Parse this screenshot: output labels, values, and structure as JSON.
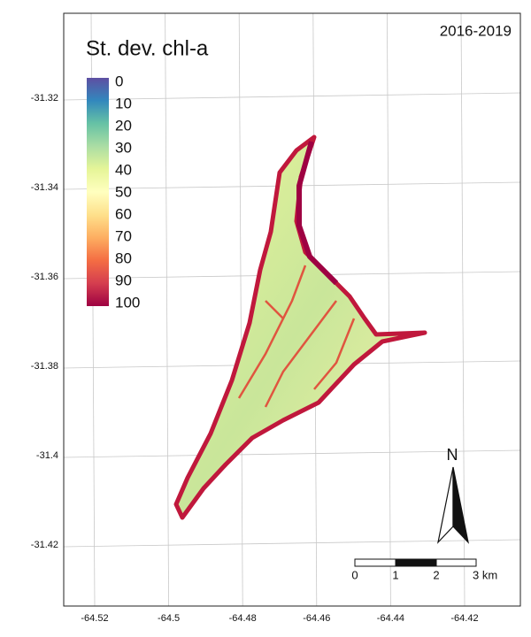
{
  "title": "St. dev. chl-a",
  "period": "2016-2019",
  "legend": {
    "ticks": [
      0,
      10,
      20,
      30,
      40,
      50,
      60,
      70,
      80,
      90,
      100
    ],
    "colors": [
      "#5e4fa2",
      "#3288bd",
      "#66c2a5",
      "#abdda4",
      "#e6f598",
      "#ffffbf",
      "#fee08b",
      "#fdae61",
      "#f46d43",
      "#d53e4f",
      "#9e0142"
    ]
  },
  "map": {
    "lat_ticks": [
      -31.32,
      -31.34,
      -31.36,
      -31.38,
      -31.4,
      -31.42
    ],
    "lon_ticks": [
      -64.52,
      -64.5,
      -64.48,
      -64.46,
      -64.44,
      -64.42
    ]
  },
  "north": "N",
  "scale_bar": {
    "labels": [
      "0",
      "1",
      "2",
      "3 km"
    ]
  }
}
